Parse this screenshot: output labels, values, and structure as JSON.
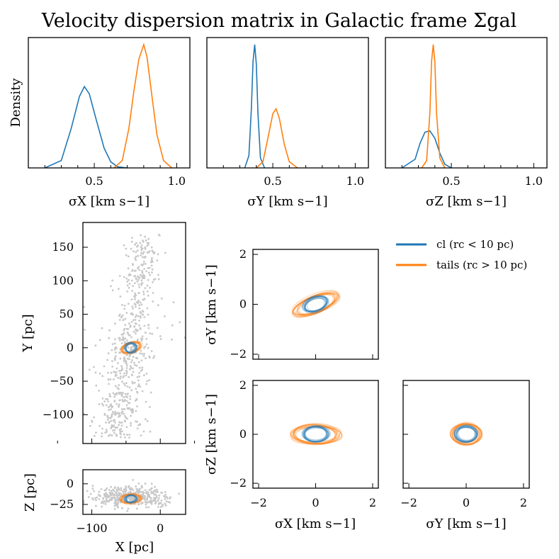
{
  "figure": {
    "title": "Velocity dispersion matrix in Galactic frame Σgal"
  },
  "colors": {
    "cl": "#1f77b4",
    "tails": "#ff7f0e",
    "field": "#c8c8c8"
  },
  "legend": {
    "cl": "cl (rc < 10 pc)",
    "tails": "tails (rc > 10 pc)"
  },
  "chart_data": [
    {
      "type": "line",
      "panel": "density-sigma-x",
      "xlabel": "σX [km s−1]",
      "ylabel": "Density",
      "xlim": [
        0.1,
        1.08
      ],
      "xticks": [
        "0.5",
        "1.0"
      ],
      "series": [
        {
          "name": "cl",
          "x": [
            0.2,
            0.3,
            0.36,
            0.41,
            0.44,
            0.47,
            0.51,
            0.56,
            0.6,
            0.64,
            0.7
          ],
          "y": [
            0.0,
            0.06,
            0.32,
            0.58,
            0.66,
            0.6,
            0.4,
            0.16,
            0.05,
            0.01,
            0.0
          ]
        },
        {
          "name": "tails",
          "x": [
            0.62,
            0.67,
            0.71,
            0.74,
            0.77,
            0.8,
            0.82,
            0.85,
            0.88,
            0.92,
            0.97
          ],
          "y": [
            0.0,
            0.06,
            0.32,
            0.62,
            0.88,
            1.0,
            0.9,
            0.58,
            0.27,
            0.06,
            0.0
          ]
        }
      ]
    },
    {
      "type": "line",
      "panel": "density-sigma-y",
      "xlabel": "σY [km s−1]",
      "xlim": [
        0.1,
        1.08
      ],
      "xticks": [
        "0.5",
        "1.0"
      ],
      "series": [
        {
          "name": "cl",
          "x": [
            0.33,
            0.355,
            0.37,
            0.38,
            0.39,
            0.4,
            0.41,
            0.425,
            0.45
          ],
          "y": [
            0.0,
            0.1,
            0.48,
            0.86,
            1.0,
            0.84,
            0.44,
            0.08,
            0.0
          ]
        },
        {
          "name": "tails",
          "x": [
            0.4,
            0.44,
            0.47,
            0.5,
            0.52,
            0.54,
            0.57,
            0.6,
            0.65
          ],
          "y": [
            0.0,
            0.05,
            0.24,
            0.44,
            0.48,
            0.4,
            0.19,
            0.05,
            0.0
          ]
        }
      ]
    },
    {
      "type": "line",
      "panel": "density-sigma-z",
      "xlabel": "σZ [km s−1]",
      "xlim": [
        0.1,
        1.08
      ],
      "xticks": [
        "0.5",
        "1.0"
      ],
      "series": [
        {
          "name": "cl",
          "x": [
            0.2,
            0.28,
            0.31,
            0.34,
            0.37,
            0.4,
            0.43,
            0.46,
            0.5
          ],
          "y": [
            0.0,
            0.07,
            0.2,
            0.29,
            0.3,
            0.24,
            0.12,
            0.03,
            0.0
          ]
        },
        {
          "name": "tails",
          "x": [
            0.32,
            0.35,
            0.37,
            0.38,
            0.39,
            0.4,
            0.41,
            0.43,
            0.46
          ],
          "y": [
            0.0,
            0.06,
            0.45,
            0.86,
            1.0,
            0.86,
            0.45,
            0.08,
            0.0
          ]
        }
      ]
    },
    {
      "type": "scatter",
      "panel": "xy-positions",
      "xlabel": "X [pc]",
      "ylabel": "Y [pc]",
      "xlim": [
        -113,
        37
      ],
      "ylim": [
        -143,
        187
      ],
      "yticks": [
        "−100",
        "−50",
        "0",
        "50",
        "100",
        "150"
      ],
      "cluster_center": [
        -43,
        0
      ],
      "cl_ellipse_semi_axes_pc": [
        8,
        7
      ],
      "tails_ellipse_semi_axes_pc": [
        15,
        10
      ]
    },
    {
      "type": "scatter",
      "panel": "xz-positions",
      "xlabel": "X [pc]",
      "ylabel": "Z [pc]",
      "xlim": [
        -113,
        37
      ],
      "ylim": [
        -37,
        17
      ],
      "xticks": [
        "−100",
        "0"
      ],
      "yticks": [
        "−25",
        "0"
      ],
      "cluster_center": [
        -43,
        -18
      ]
    },
    {
      "type": "scatter",
      "panel": "dispersion-sigma-x-sigma-y",
      "ylabel": "σY [km s−1]",
      "xlim": [
        -2.2,
        2.2
      ],
      "ylim": [
        -2.2,
        2.2
      ],
      "yticks": [
        "−2",
        "0",
        "2"
      ],
      "cl_ellipse": {
        "rx": 0.42,
        "ry": 0.27,
        "angle_deg": 18
      },
      "tails_ellipse": {
        "rx": 0.8,
        "ry": 0.32,
        "angle_deg": 20
      }
    },
    {
      "type": "scatter",
      "panel": "dispersion-sigma-x-sigma-z",
      "xlabel": "σX [km s−1]",
      "ylabel": "σZ [km s−1]",
      "xlim": [
        -2.2,
        2.2
      ],
      "ylim": [
        -2.2,
        2.2
      ],
      "xticks": [
        "−2",
        "0",
        "2"
      ],
      "yticks": [
        "−2",
        "0",
        "2"
      ],
      "cl_ellipse": {
        "rx": 0.45,
        "ry": 0.3,
        "angle_deg": 0
      },
      "tails_ellipse": {
        "rx": 0.82,
        "ry": 0.36,
        "angle_deg": 0
      }
    },
    {
      "type": "scatter",
      "panel": "dispersion-sigma-y-sigma-z",
      "xlabel": "σY [km s−1]",
      "xlim": [
        -2.2,
        2.2
      ],
      "ylim": [
        -2.2,
        2.2
      ],
      "xticks": [
        "−2",
        "0",
        "2"
      ],
      "cl_ellipse": {
        "rx": 0.36,
        "ry": 0.3,
        "angle_deg": 0
      },
      "tails_ellipse": {
        "rx": 0.48,
        "ry": 0.4,
        "angle_deg": 0
      }
    }
  ]
}
